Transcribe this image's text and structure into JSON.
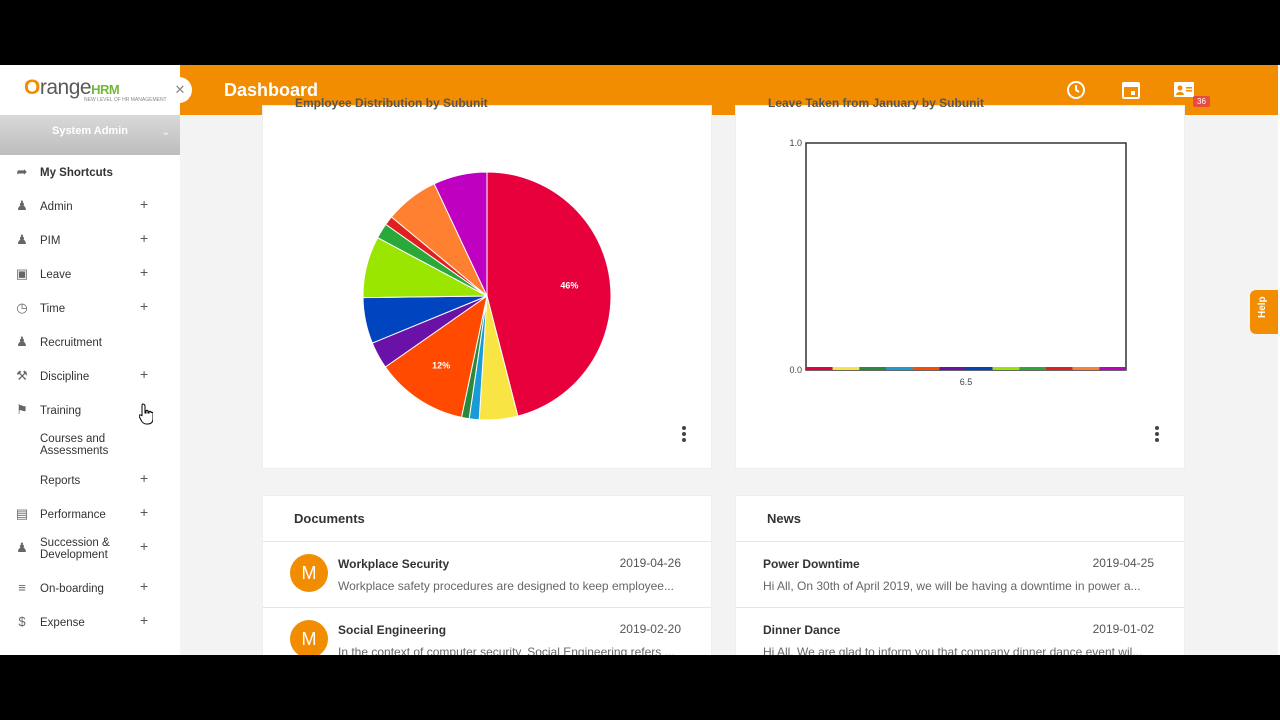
{
  "brand": {
    "name_prefix": "O",
    "name_rest": "range",
    "name_suffix": "HRM",
    "tagline": "NEW LEVEL OF HR MANAGEMENT"
  },
  "user": {
    "name": "System Admin"
  },
  "header": {
    "title": "Dashboard",
    "badge_count": "36"
  },
  "sidebar": {
    "items": [
      {
        "label": "My Shortcuts",
        "icon": "share-arrow-icon"
      },
      {
        "label": "Admin",
        "icon": "user-gear-icon"
      },
      {
        "label": "PIM",
        "icon": "user-list-icon"
      },
      {
        "label": "Leave",
        "icon": "briefcase-icon"
      },
      {
        "label": "Time",
        "icon": "clock-icon"
      },
      {
        "label": "Recruitment",
        "icon": "user-search-icon"
      },
      {
        "label": "Discipline",
        "icon": "gavel-icon"
      },
      {
        "label": "Training",
        "icon": "megaphone-icon"
      },
      {
        "label": "Courses and Assessments"
      },
      {
        "label": "Reports"
      },
      {
        "label": "Performance",
        "icon": "bar-chart-icon"
      },
      {
        "label": "Succession & Development",
        "icon": "users-icon"
      },
      {
        "label": "On-boarding",
        "icon": "layers-icon"
      },
      {
        "label": "Expense",
        "icon": "dollar-icon"
      }
    ]
  },
  "pie_card": {
    "title": "Employee Distribution by Subunit"
  },
  "bar_card": {
    "title": "Leave Taken from January by Subunit"
  },
  "chart_data": [
    {
      "type": "pie",
      "title": "Employee Distribution by Subunit",
      "slices": [
        {
          "value": 46,
          "color": "#e8003c",
          "label": "46%"
        },
        {
          "value": 5,
          "color": "#f8e442",
          "label": ""
        },
        {
          "value": 1.3,
          "color": "#1a9bd8",
          "label": ""
        },
        {
          "value": 1,
          "color": "#2a8a3a",
          "label": ""
        },
        {
          "value": 12,
          "color": "#ff4a00",
          "label": "12%"
        },
        {
          "value": 3.5,
          "color": "#6a12a8",
          "label": ""
        },
        {
          "value": 6,
          "color": "#0044c0",
          "label": ""
        },
        {
          "value": 8,
          "color": "#9ae600",
          "label": ""
        },
        {
          "value": 2,
          "color": "#2aa83a",
          "label": ""
        },
        {
          "value": 1.2,
          "color": "#e02020",
          "label": ""
        },
        {
          "value": 7,
          "color": "#ff8030",
          "label": ""
        },
        {
          "value": 7,
          "color": "#c000c0",
          "label": ""
        }
      ]
    },
    {
      "type": "bar",
      "title": "Leave Taken from January by Subunit",
      "ylim": [
        0,
        1
      ],
      "yticks": [
        "1.0",
        "0.0"
      ],
      "xticks": [
        "6.5"
      ],
      "values": [
        0,
        0,
        0,
        0,
        0,
        0,
        0,
        0,
        0,
        0,
        0,
        0
      ],
      "colors": [
        "#e8003c",
        "#f8e442",
        "#2a8a3a",
        "#1a9bd8",
        "#ff4a00",
        "#6a12a8",
        "#0044c0",
        "#9ae600",
        "#2aa83a",
        "#e02020",
        "#ff8030",
        "#c000c0"
      ]
    }
  ],
  "documents": {
    "header": "Documents",
    "items": [
      {
        "avatar": "M",
        "title": "Workplace Security",
        "date": "2019-04-26",
        "snippet": "Workplace safety procedures are designed to keep employee..."
      },
      {
        "avatar": "M",
        "title": "Social Engineering",
        "date": "2019-02-20",
        "snippet": "In the context of computer security, Social Engineering refers ..."
      }
    ]
  },
  "news": {
    "header": "News",
    "items": [
      {
        "title": "Power Downtime",
        "date": "2019-04-25",
        "snippet": "Hi All,   On 30th of April 2019, we will be having a downtime in power a..."
      },
      {
        "title": "Dinner Dance",
        "date": "2019-01-02",
        "snippet": "Hi All,   We are glad to inform you that company dinner dance event wil..."
      }
    ]
  },
  "help": {
    "label": "Help"
  }
}
